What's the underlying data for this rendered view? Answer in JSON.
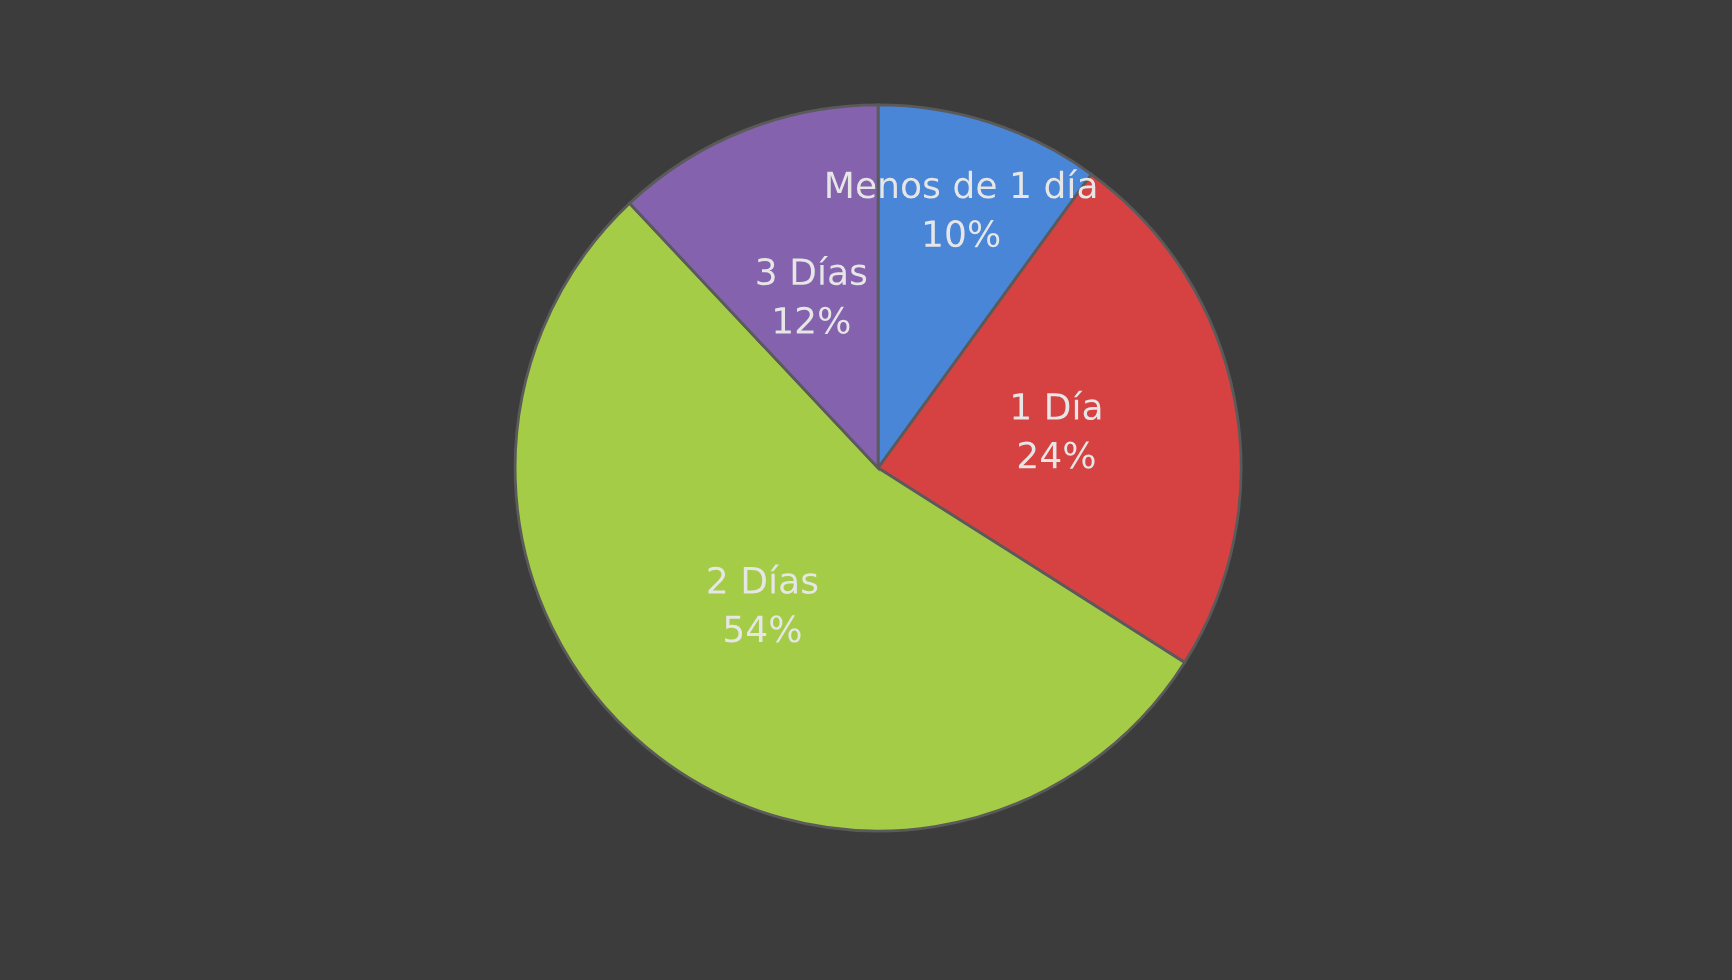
{
  "chart_data": {
    "type": "pie",
    "categories": [
      "Menos de 1 día",
      "1 Día",
      "2 Días",
      "3 Días"
    ],
    "values": [
      10,
      24,
      54,
      12
    ],
    "colors": [
      "#4a86d8",
      "#d64242",
      "#a4cc46",
      "#8462ae"
    ],
    "value_labels": [
      "10%",
      "24%",
      "54%",
      "12%"
    ],
    "data_labels": true,
    "legend": false
  }
}
